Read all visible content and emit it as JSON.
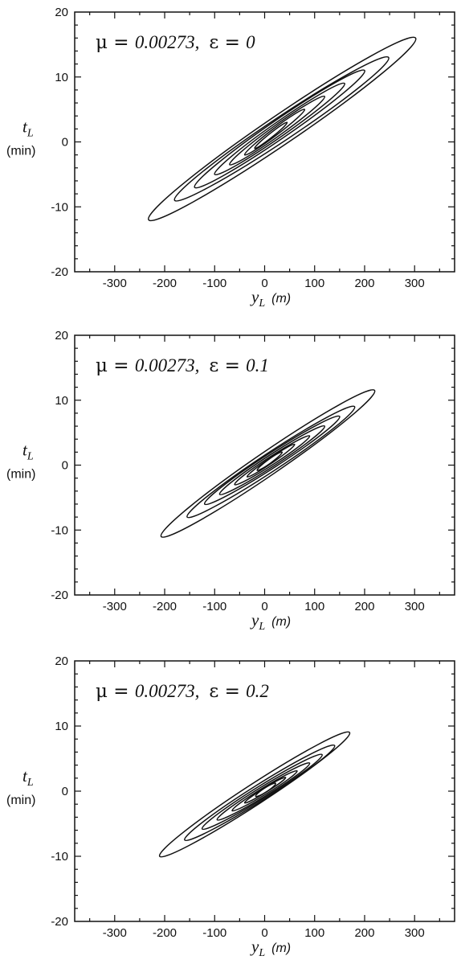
{
  "chart_data": [
    {
      "type": "line",
      "title": "",
      "annotation": {
        "mu_symbol": "μ",
        "mu_value": "0.00273,",
        "eps_symbol": "ε",
        "eps_value": "0"
      },
      "xlabel": {
        "var": "y",
        "sub": "L",
        "unit": "(m)"
      },
      "ylabel": {
        "var": "t",
        "sub": "L",
        "unit": "(min)"
      },
      "xlim": [
        -380,
        380
      ],
      "ylim": [
        -20,
        20
      ],
      "x_ticks": [
        -300,
        -200,
        -100,
        0,
        100,
        200,
        300
      ],
      "x_tick_labels": [
        "-300",
        "-200",
        "-100",
        "0",
        "100",
        "200",
        "300"
      ],
      "y_ticks": [
        -20,
        -10,
        0,
        10,
        20
      ],
      "y_tick_labels": [
        "-20",
        "-10",
        "0",
        "10",
        "20"
      ],
      "grid": false,
      "contours": [
        {
          "x_range": [
            -232,
            302
          ],
          "y_range": [
            -12,
            16
          ]
        },
        {
          "x_range": [
            -180,
            248
          ],
          "y_range": [
            -9,
            13
          ]
        },
        {
          "x_range": [
            -140,
            200
          ],
          "y_range": [
            -7,
            11
          ]
        },
        {
          "x_range": [
            -100,
            160
          ],
          "y_range": [
            -5,
            9
          ]
        },
        {
          "x_range": [
            -70,
            120
          ],
          "y_range": [
            -3.5,
            7
          ]
        },
        {
          "x_range": [
            -40,
            80
          ],
          "y_range": [
            -2,
            5
          ]
        },
        {
          "x_range": [
            -20,
            45
          ],
          "y_range": [
            -1,
            3
          ]
        }
      ]
    },
    {
      "type": "line",
      "title": "",
      "annotation": {
        "mu_symbol": "μ",
        "mu_value": "0.00273,",
        "eps_symbol": "ε",
        "eps_value": "0.1"
      },
      "xlabel": {
        "var": "y",
        "sub": "L",
        "unit": "(m)"
      },
      "ylabel": {
        "var": "t",
        "sub": "L",
        "unit": "(min)"
      },
      "xlim": [
        -380,
        380
      ],
      "ylim": [
        -20,
        20
      ],
      "x_ticks": [
        -300,
        -200,
        -100,
        0,
        100,
        200,
        300
      ],
      "x_tick_labels": [
        "-300",
        "-200",
        "-100",
        "0",
        "100",
        "200",
        "300"
      ],
      "y_ticks": [
        -20,
        -10,
        0,
        10,
        20
      ],
      "y_tick_labels": [
        "-20",
        "-10",
        "0",
        "10",
        "20"
      ],
      "grid": false,
      "contours": [
        {
          "x_range": [
            -207,
            220
          ],
          "y_range": [
            -11,
            11.5
          ]
        },
        {
          "x_range": [
            -155,
            180
          ],
          "y_range": [
            -8,
            9
          ]
        },
        {
          "x_range": [
            -120,
            150
          ],
          "y_range": [
            -6,
            7.5
          ]
        },
        {
          "x_range": [
            -90,
            120
          ],
          "y_range": [
            -4.5,
            6
          ]
        },
        {
          "x_range": [
            -60,
            90
          ],
          "y_range": [
            -3,
            4.5
          ]
        },
        {
          "x_range": [
            -35,
            60
          ],
          "y_range": [
            -1.8,
            3.2
          ]
        },
        {
          "x_range": [
            -15,
            35
          ],
          "y_range": [
            -0.8,
            2
          ]
        }
      ]
    },
    {
      "type": "line",
      "title": "",
      "annotation": {
        "mu_symbol": "μ",
        "mu_value": "0.00273,",
        "eps_symbol": "ε",
        "eps_value": "0.2"
      },
      "xlabel": {
        "var": "y",
        "sub": "L",
        "unit": "(m)"
      },
      "ylabel": {
        "var": "t",
        "sub": "L",
        "unit": "(min)"
      },
      "xlim": [
        -380,
        380
      ],
      "ylim": [
        -20,
        20
      ],
      "x_ticks": [
        -300,
        -200,
        -100,
        0,
        100,
        200,
        300
      ],
      "x_tick_labels": [
        "-300",
        "-200",
        "-100",
        "0",
        "100",
        "200",
        "300"
      ],
      "y_ticks": [
        -20,
        -10,
        0,
        10,
        20
      ],
      "y_tick_labels": [
        "-20",
        "-10",
        "0",
        "10",
        "20"
      ],
      "grid": false,
      "contours": [
        {
          "x_range": [
            -210,
            170
          ],
          "y_range": [
            -10,
            9
          ]
        },
        {
          "x_range": [
            -160,
            140
          ],
          "y_range": [
            -7.5,
            7
          ]
        },
        {
          "x_range": [
            -125,
            115
          ],
          "y_range": [
            -5.8,
            5.6
          ]
        },
        {
          "x_range": [
            -95,
            90
          ],
          "y_range": [
            -4.4,
            4.3
          ]
        },
        {
          "x_range": [
            -65,
            65
          ],
          "y_range": [
            -3,
            3.1
          ]
        },
        {
          "x_range": [
            -40,
            42
          ],
          "y_range": [
            -1.8,
            2.1
          ]
        },
        {
          "x_range": [
            -18,
            22
          ],
          "y_range": [
            -0.8,
            1.2
          ]
        }
      ]
    }
  ]
}
